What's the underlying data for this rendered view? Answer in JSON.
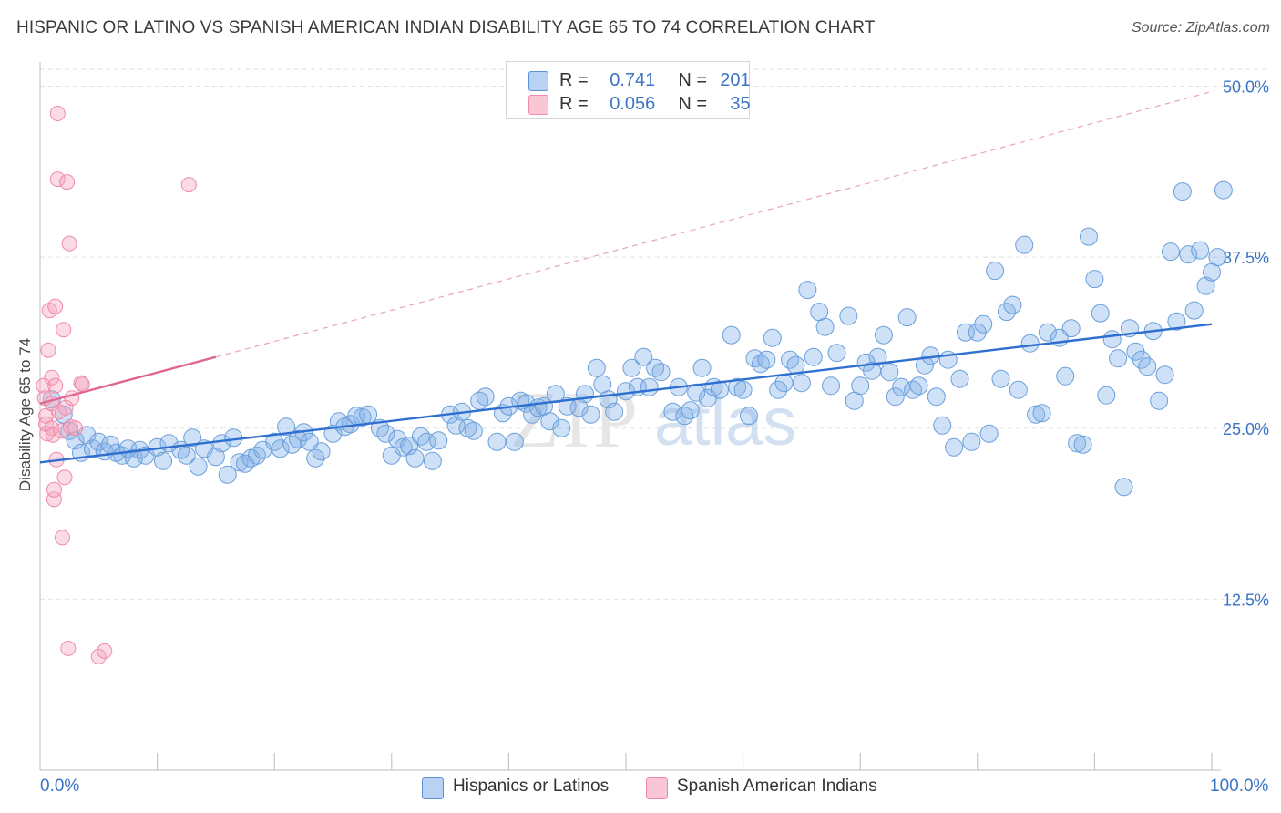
{
  "title": "HISPANIC OR LATINO VS SPANISH AMERICAN INDIAN DISABILITY AGE 65 TO 74 CORRELATION CHART",
  "source": "Source: ZipAtlas.com",
  "legend_stats": {
    "r_label": "R =",
    "n_label": "N =",
    "rows": [
      {
        "r": "0.741",
        "n": "201"
      },
      {
        "r": "0.056",
        "n": "35"
      }
    ]
  },
  "bottom_legend": {
    "blue": "Hispanics or Latinos",
    "pink": "Spanish American Indians"
  },
  "colors": {
    "blue": "#5b93d8",
    "blue_line": "#2f6fd0",
    "pink": "#f08aa8",
    "pink_line": "#e06890",
    "axis_text": "#3b74c5"
  },
  "chart_data": {
    "type": "scatter",
    "xlabel": "",
    "ylabel": "Disability Age 65 to 74",
    "xlim": [
      0,
      100
    ],
    "ylim": [
      0,
      52.5
    ],
    "x_tick_labels": [
      "0.0%",
      "100.0%"
    ],
    "y_ticks": [
      12.5,
      25.0,
      37.5,
      50.0
    ],
    "y_tick_labels": [
      "12.5%",
      "25.0%",
      "37.5%",
      "50.0%"
    ],
    "grid": "horizontal dashed",
    "legend_position": "top-center",
    "series": [
      {
        "name": "Hispanics or Latinos",
        "color": "#5b93d8",
        "trend": {
          "x": [
            0,
            100
          ],
          "y": [
            22.5,
            32.6
          ],
          "style": "solid"
        },
        "points": [
          [
            1,
            27.1
          ],
          [
            2,
            26.0
          ],
          [
            2.5,
            24.8
          ],
          [
            3,
            24.1
          ],
          [
            3.5,
            23.2
          ],
          [
            4,
            24.5
          ],
          [
            4.5,
            23.5
          ],
          [
            5,
            24.0
          ],
          [
            5.5,
            23.3
          ],
          [
            6,
            23.8
          ],
          [
            6.5,
            23.2
          ],
          [
            7,
            23.0
          ],
          [
            7.5,
            23.5
          ],
          [
            8,
            22.8
          ],
          [
            8.5,
            23.4
          ],
          [
            9,
            23.0
          ],
          [
            10,
            23.6
          ],
          [
            10.5,
            22.6
          ],
          [
            11,
            23.9
          ],
          [
            12,
            23.4
          ],
          [
            12.5,
            23.0
          ],
          [
            13,
            24.3
          ],
          [
            13.5,
            22.2
          ],
          [
            14,
            23.5
          ],
          [
            15,
            22.9
          ],
          [
            15.5,
            23.9
          ],
          [
            16,
            21.6
          ],
          [
            16.5,
            24.3
          ],
          [
            17,
            22.5
          ],
          [
            17.5,
            22.4
          ],
          [
            18,
            22.8
          ],
          [
            18.5,
            23.0
          ],
          [
            19,
            23.4
          ],
          [
            20,
            24.0
          ],
          [
            20.5,
            23.5
          ],
          [
            21,
            25.1
          ],
          [
            21.5,
            23.8
          ],
          [
            22,
            24.2
          ],
          [
            22.5,
            24.7
          ],
          [
            23,
            24.0
          ],
          [
            23.5,
            22.8
          ],
          [
            24,
            23.3
          ],
          [
            25,
            24.6
          ],
          [
            25.5,
            25.5
          ],
          [
            26,
            25.1
          ],
          [
            26.5,
            25.3
          ],
          [
            27,
            25.9
          ],
          [
            27.5,
            25.8
          ],
          [
            28,
            26.0
          ],
          [
            29,
            25.0
          ],
          [
            29.5,
            24.6
          ],
          [
            30,
            23.0
          ],
          [
            30.5,
            24.2
          ],
          [
            31,
            23.6
          ],
          [
            31.5,
            23.7
          ],
          [
            32,
            22.8
          ],
          [
            32.5,
            24.4
          ],
          [
            33,
            24.0
          ],
          [
            33.5,
            22.6
          ],
          [
            34,
            24.1
          ],
          [
            35,
            26.0
          ],
          [
            35.5,
            25.2
          ],
          [
            36,
            26.2
          ],
          [
            36.5,
            25.0
          ],
          [
            37,
            24.8
          ],
          [
            37.5,
            27.0
          ],
          [
            38,
            27.3
          ],
          [
            39,
            24.0
          ],
          [
            39.5,
            26.1
          ],
          [
            40,
            26.6
          ],
          [
            40.5,
            24.0
          ],
          [
            41,
            27.0
          ],
          [
            41.5,
            26.8
          ],
          [
            42,
            26.0
          ],
          [
            42.5,
            26.5
          ],
          [
            43,
            26.6
          ],
          [
            43.5,
            25.5
          ],
          [
            44,
            27.5
          ],
          [
            44.5,
            25.0
          ],
          [
            45,
            26.6
          ],
          [
            46,
            26.5
          ],
          [
            46.5,
            27.5
          ],
          [
            47,
            26.0
          ],
          [
            47.5,
            29.4
          ],
          [
            48,
            28.2
          ],
          [
            48.5,
            27.1
          ],
          [
            49,
            26.2
          ],
          [
            50,
            27.7
          ],
          [
            50.5,
            29.4
          ],
          [
            51,
            28.0
          ],
          [
            51.5,
            30.2
          ],
          [
            52,
            28.0
          ],
          [
            52.5,
            29.4
          ],
          [
            53,
            29.1
          ],
          [
            54,
            26.2
          ],
          [
            54.5,
            28.0
          ],
          [
            55,
            25.9
          ],
          [
            55.5,
            26.3
          ],
          [
            56,
            27.6
          ],
          [
            56.5,
            29.4
          ],
          [
            57,
            27.2
          ],
          [
            57.5,
            28.0
          ],
          [
            58,
            27.8
          ],
          [
            59,
            31.8
          ],
          [
            59.5,
            28.0
          ],
          [
            60,
            27.8
          ],
          [
            60.5,
            25.9
          ],
          [
            61,
            30.1
          ],
          [
            61.5,
            29.7
          ],
          [
            62,
            30.0
          ],
          [
            62.5,
            31.6
          ],
          [
            63,
            27.8
          ],
          [
            63.5,
            28.3
          ],
          [
            64,
            30.0
          ],
          [
            64.5,
            29.6
          ],
          [
            65,
            28.3
          ],
          [
            65.5,
            35.1
          ],
          [
            66,
            30.2
          ],
          [
            66.5,
            33.5
          ],
          [
            67,
            32.4
          ],
          [
            67.5,
            28.1
          ],
          [
            68,
            30.5
          ],
          [
            69,
            33.2
          ],
          [
            69.5,
            27.0
          ],
          [
            70,
            28.1
          ],
          [
            70.5,
            29.8
          ],
          [
            71,
            29.2
          ],
          [
            71.5,
            30.2
          ],
          [
            72,
            31.8
          ],
          [
            72.5,
            29.1
          ],
          [
            73,
            27.3
          ],
          [
            73.5,
            28.0
          ],
          [
            74,
            33.1
          ],
          [
            74.5,
            27.8
          ],
          [
            75,
            28.1
          ],
          [
            75.5,
            29.6
          ],
          [
            76,
            30.3
          ],
          [
            76.5,
            27.3
          ],
          [
            77,
            25.2
          ],
          [
            77.5,
            30.0
          ],
          [
            78,
            23.6
          ],
          [
            78.5,
            28.6
          ],
          [
            79,
            32.0
          ],
          [
            79.5,
            24.0
          ],
          [
            80,
            32.0
          ],
          [
            80.5,
            32.6
          ],
          [
            81,
            24.6
          ],
          [
            81.5,
            36.5
          ],
          [
            82,
            28.6
          ],
          [
            82.5,
            33.5
          ],
          [
            83,
            34.0
          ],
          [
            83.5,
            27.8
          ],
          [
            84,
            38.4
          ],
          [
            84.5,
            31.2
          ],
          [
            85,
            26.0
          ],
          [
            85.5,
            26.1
          ],
          [
            86,
            32.0
          ],
          [
            87,
            31.6
          ],
          [
            87.5,
            28.8
          ],
          [
            88,
            32.3
          ],
          [
            88.5,
            23.9
          ],
          [
            89,
            23.8
          ],
          [
            89.5,
            39.0
          ],
          [
            90,
            35.9
          ],
          [
            90.5,
            33.4
          ],
          [
            91,
            27.4
          ],
          [
            91.5,
            31.5
          ],
          [
            92,
            30.1
          ],
          [
            92.5,
            20.7
          ],
          [
            93,
            32.3
          ],
          [
            93.5,
            30.6
          ],
          [
            94,
            30.0
          ],
          [
            94.5,
            29.5
          ],
          [
            95,
            32.1
          ],
          [
            95.5,
            27.0
          ],
          [
            96,
            28.9
          ],
          [
            96.5,
            37.9
          ],
          [
            97,
            32.8
          ],
          [
            97.5,
            42.3
          ],
          [
            98,
            37.7
          ],
          [
            98.5,
            33.6
          ],
          [
            99,
            38.0
          ],
          [
            99.5,
            35.4
          ],
          [
            100,
            36.4
          ],
          [
            100.5,
            37.5
          ],
          [
            101,
            42.4
          ]
        ]
      },
      {
        "name": "Spanish American Indians",
        "color": "#f08aa8",
        "trend": {
          "x": [
            0,
            15
          ],
          "y": [
            26.8,
            30.2
          ],
          "style": "solid-then-dashed",
          "dashed_to": [
            100,
            49.6
          ]
        },
        "points": [
          [
            0.3,
            28.1
          ],
          [
            0.4,
            27.2
          ],
          [
            0.5,
            25.9
          ],
          [
            0.5,
            25.3
          ],
          [
            0.6,
            24.6
          ],
          [
            0.7,
            30.7
          ],
          [
            0.8,
            33.6
          ],
          [
            1,
            28.7
          ],
          [
            1,
            26.8
          ],
          [
            1,
            25.0
          ],
          [
            1.1,
            24.5
          ],
          [
            1.2,
            19.8
          ],
          [
            1.2,
            20.5
          ],
          [
            1.3,
            33.9
          ],
          [
            1.4,
            22.7
          ],
          [
            1.5,
            48.0
          ],
          [
            1.5,
            43.2
          ],
          [
            1.6,
            26.2
          ],
          [
            1.8,
            24.8
          ],
          [
            1.9,
            17.0
          ],
          [
            2,
            32.2
          ],
          [
            2.1,
            21.4
          ],
          [
            2.2,
            26.5
          ],
          [
            2.3,
            43.0
          ],
          [
            2.4,
            8.9
          ],
          [
            2.5,
            38.5
          ],
          [
            2.6,
            25.1
          ],
          [
            2.7,
            27.2
          ],
          [
            3,
            25.0
          ],
          [
            3.5,
            28.3
          ],
          [
            3.6,
            28.2
          ],
          [
            5,
            8.3
          ],
          [
            5.5,
            8.7
          ],
          [
            12.7,
            42.8
          ],
          [
            1.3,
            28.1
          ]
        ]
      }
    ]
  }
}
